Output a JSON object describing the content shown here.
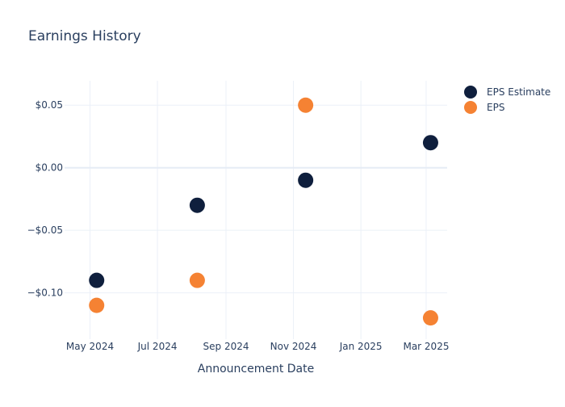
{
  "chart_data": {
    "type": "scatter",
    "title": "Earnings History",
    "xlabel": "Announcement Date",
    "ylabel": "",
    "x_ticks": [
      "May 2024",
      "Jul 2024",
      "Sep 2024",
      "Nov 2024",
      "Jan 2025",
      "Mar 2025"
    ],
    "x_tick_dates": [
      "2024-05-01",
      "2024-07-01",
      "2024-09-01",
      "2024-11-01",
      "2025-01-01",
      "2025-03-01"
    ],
    "x_range": [
      "2024-04-08",
      "2025-03-20"
    ],
    "y_ticks": [
      0.05,
      0.0,
      -0.05,
      -0.1
    ],
    "y_tick_labels": [
      "$0.05",
      "$0.00",
      "−$0.05",
      "−$0.10"
    ],
    "ylim": [
      -0.137,
      0.0695
    ],
    "grid": true,
    "legend_position": "top-right",
    "series": [
      {
        "name": "EPS Estimate",
        "color": "#0f1f3d",
        "points": [
          {
            "x": "2024-05-07",
            "y": -0.09
          },
          {
            "x": "2024-08-06",
            "y": -0.03
          },
          {
            "x": "2024-11-12",
            "y": -0.01
          },
          {
            "x": "2025-03-05",
            "y": 0.02
          }
        ]
      },
      {
        "name": "EPS",
        "color": "#f58233",
        "points": [
          {
            "x": "2024-05-07",
            "y": -0.11
          },
          {
            "x": "2024-08-06",
            "y": -0.09
          },
          {
            "x": "2024-11-12",
            "y": 0.05
          },
          {
            "x": "2025-03-05",
            "y": -0.12
          }
        ]
      }
    ]
  }
}
